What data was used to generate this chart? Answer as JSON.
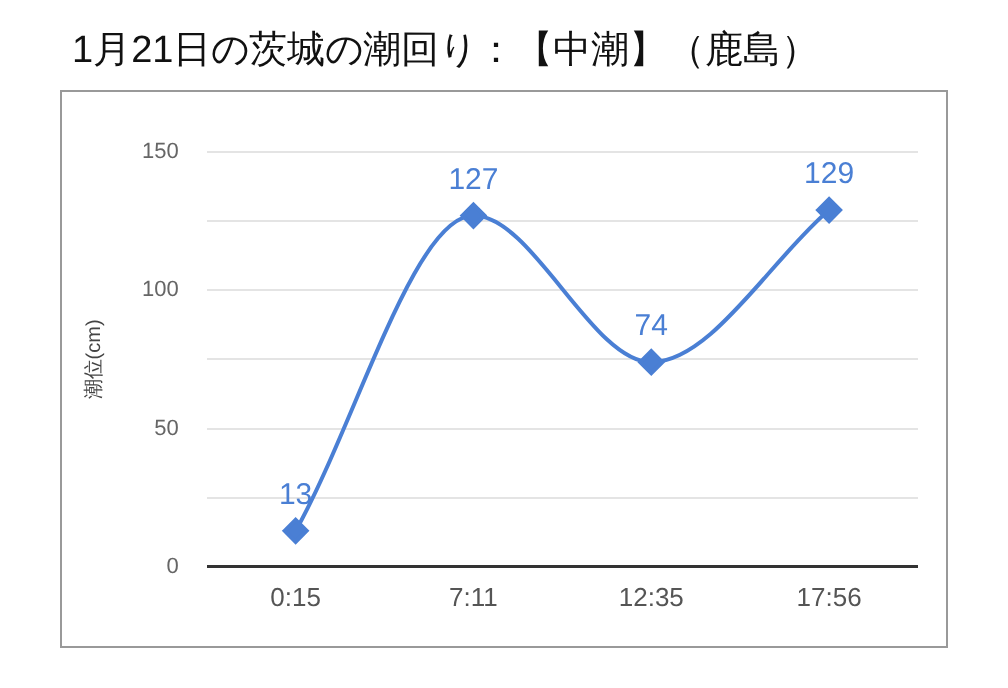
{
  "chart_data": {
    "type": "line",
    "title": "1月21日の茨城の潮回り：【中潮】（鹿島）",
    "ylabel": "潮位(cm)",
    "categories": [
      "0:15",
      "7:11",
      "12:35",
      "17:56"
    ],
    "series": [
      {
        "color": "#4a7fd4",
        "values": [
          13,
          127,
          74,
          129
        ]
      }
    ],
    "ylim": [
      0,
      150
    ],
    "yticks": [
      0,
      {
        "value": 25,
        "label": null
      },
      50,
      {
        "value": 75,
        "label": null
      },
      100,
      {
        "value": 125,
        "label": null
      },
      150
    ],
    "grid": "y",
    "legend": false,
    "marker": "diamond",
    "line_style": "solid",
    "data_labels": true
  }
}
